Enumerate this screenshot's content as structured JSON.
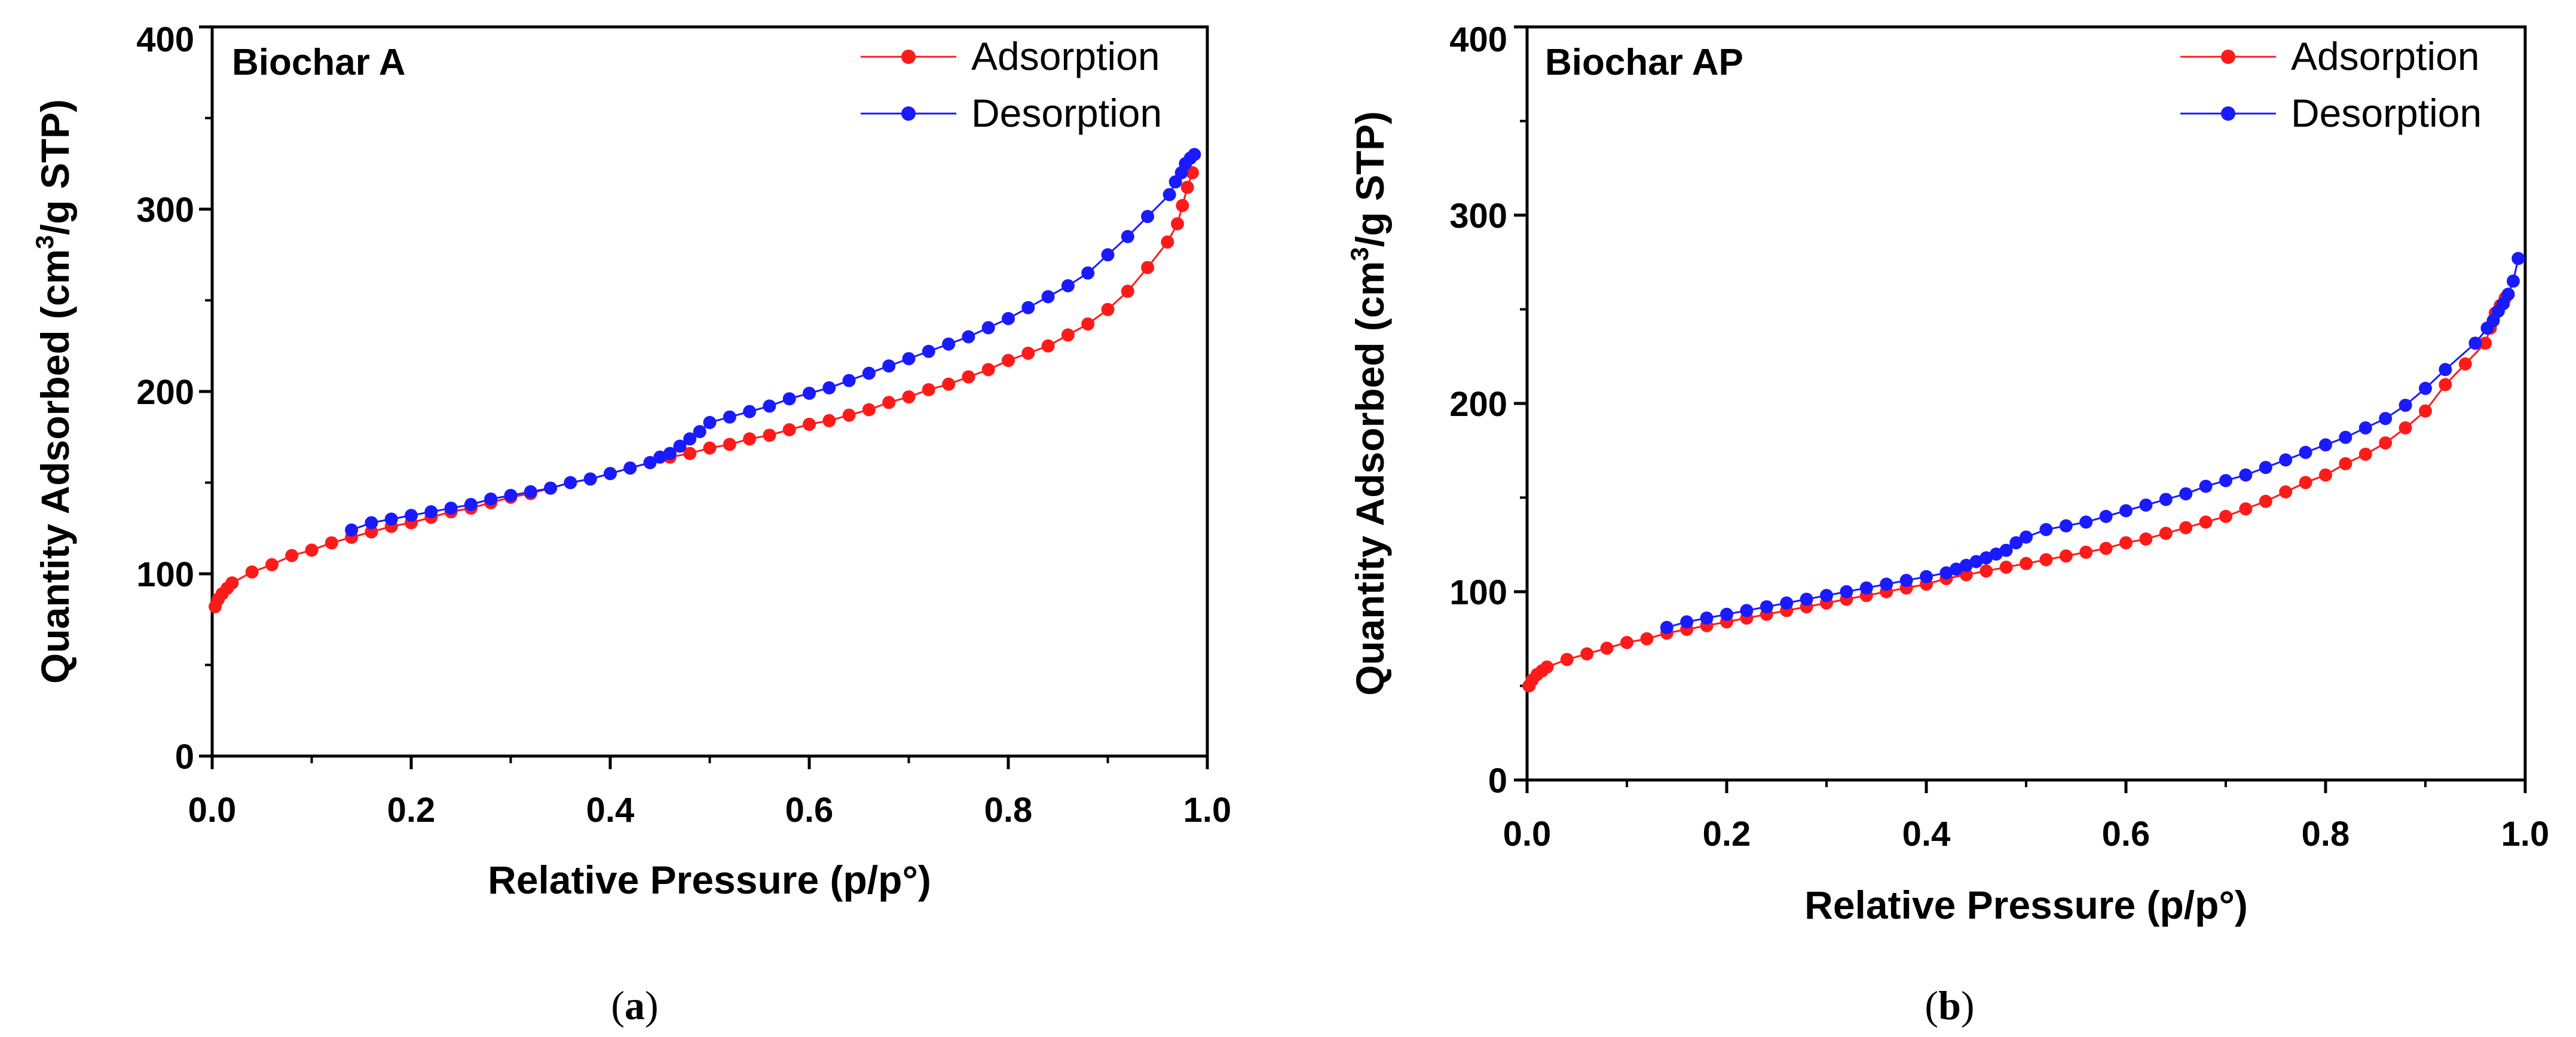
{
  "chart_data": [
    {
      "type": "line",
      "panel_title": "Biochar A",
      "caption": {
        "open": "(",
        "letter": "a",
        "close": ")"
      },
      "xlabel": "Relative Pressure (p/p°)",
      "ylabel": {
        "pre": "Quantity Adsorbed (cm",
        "sup": "3",
        "post": "/g STP)"
      },
      "xlim": [
        0,
        1.0
      ],
      "ylim": [
        0,
        400
      ],
      "xticks": [
        0.0,
        0.2,
        0.4,
        0.6,
        0.8,
        1.0
      ],
      "xtick_labels": [
        "0.0",
        "0.2",
        "0.4",
        "0.6",
        "0.8",
        "1.0"
      ],
      "yticks": [
        0,
        100,
        200,
        300,
        400
      ],
      "ytick_labels": [
        "0",
        "100",
        "200",
        "300",
        "400"
      ],
      "legend_position": "top-right",
      "series": [
        {
          "name": "Adsorption",
          "color": "#ff1a1a",
          "x": [
            0.003,
            0.006,
            0.01,
            0.015,
            0.02,
            0.04,
            0.06,
            0.08,
            0.1,
            0.12,
            0.14,
            0.16,
            0.18,
            0.2,
            0.22,
            0.24,
            0.26,
            0.28,
            0.3,
            0.32,
            0.34,
            0.36,
            0.38,
            0.4,
            0.42,
            0.44,
            0.46,
            0.48,
            0.5,
            0.52,
            0.54,
            0.56,
            0.58,
            0.6,
            0.62,
            0.64,
            0.66,
            0.68,
            0.7,
            0.72,
            0.74,
            0.76,
            0.78,
            0.8,
            0.82,
            0.84,
            0.86,
            0.88,
            0.9,
            0.92,
            0.94,
            0.96,
            0.97,
            0.975,
            0.98,
            0.985
          ],
          "values": [
            82,
            86,
            89,
            92,
            95,
            101,
            105,
            110,
            113,
            117,
            120,
            123,
            126,
            128,
            131,
            134,
            136,
            139,
            142,
            144,
            147,
            150,
            152,
            155,
            158,
            161,
            164,
            166,
            169,
            171,
            174,
            176,
            179,
            182,
            184,
            187,
            190,
            194,
            197,
            201,
            204,
            208,
            212,
            217,
            221,
            225,
            231,
            237,
            245,
            255,
            268,
            282,
            292,
            302,
            312,
            320
          ]
        },
        {
          "name": "Desorption",
          "color": "#1a1aff",
          "x": [
            0.987,
            0.983,
            0.978,
            0.974,
            0.968,
            0.962,
            0.94,
            0.92,
            0.9,
            0.88,
            0.86,
            0.84,
            0.82,
            0.8,
            0.78,
            0.76,
            0.74,
            0.72,
            0.7,
            0.68,
            0.66,
            0.64,
            0.62,
            0.6,
            0.58,
            0.56,
            0.54,
            0.52,
            0.5,
            0.49,
            0.48,
            0.47,
            0.46,
            0.45,
            0.44,
            0.42,
            0.4,
            0.38,
            0.36,
            0.34,
            0.32,
            0.3,
            0.28,
            0.26,
            0.24,
            0.22,
            0.2,
            0.18,
            0.16,
            0.14
          ],
          "values": [
            330,
            328,
            325,
            320,
            315,
            308,
            296,
            285,
            275,
            265,
            258,
            252,
            246,
            240,
            235,
            230,
            226,
            222,
            218,
            214,
            210,
            206,
            202,
            199,
            196,
            192,
            189,
            186,
            183,
            178,
            174,
            170,
            166,
            164,
            161,
            158,
            155,
            152,
            150,
            147,
            145,
            143,
            141,
            138,
            136,
            134,
            132,
            130,
            128,
            124
          ]
        }
      ]
    },
    {
      "type": "line",
      "panel_title": "Biochar AP",
      "caption": {
        "open": "(",
        "letter": "b",
        "close": ")"
      },
      "xlabel": "Relative Pressure (p/p°)",
      "ylabel": {
        "pre": "Quantity Adsorbed (cm",
        "sup": "3",
        "post": "/g STP)"
      },
      "xlim": [
        0,
        1.0
      ],
      "ylim": [
        0,
        400
      ],
      "xticks": [
        0.0,
        0.2,
        0.4,
        0.6,
        0.8,
        1.0
      ],
      "xtick_labels": [
        "0.0",
        "0.2",
        "0.4",
        "0.6",
        "0.8",
        "1.0"
      ],
      "yticks": [
        0,
        100,
        200,
        300,
        400
      ],
      "ytick_labels": [
        "0",
        "100",
        "200",
        "300",
        "400"
      ],
      "legend_position": "top-right",
      "series": [
        {
          "name": "Adsorption",
          "color": "#ff1a1a",
          "x": [
            0.002,
            0.005,
            0.01,
            0.015,
            0.02,
            0.04,
            0.06,
            0.08,
            0.1,
            0.12,
            0.14,
            0.16,
            0.18,
            0.2,
            0.22,
            0.24,
            0.26,
            0.28,
            0.3,
            0.32,
            0.34,
            0.36,
            0.38,
            0.4,
            0.42,
            0.44,
            0.46,
            0.48,
            0.5,
            0.52,
            0.54,
            0.56,
            0.58,
            0.6,
            0.62,
            0.64,
            0.66,
            0.68,
            0.7,
            0.72,
            0.74,
            0.76,
            0.78,
            0.8,
            0.82,
            0.84,
            0.86,
            0.88,
            0.9,
            0.92,
            0.94,
            0.96,
            0.965,
            0.97,
            0.975,
            0.98
          ],
          "values": [
            50,
            53,
            56,
            58,
            60,
            64,
            67,
            70,
            73,
            75,
            78,
            80,
            82,
            84,
            86,
            88,
            90,
            92,
            94,
            96,
            98,
            100,
            102,
            104,
            107,
            109,
            111,
            113,
            115,
            117,
            119,
            121,
            123,
            126,
            128,
            131,
            134,
            137,
            140,
            144,
            148,
            153,
            158,
            162,
            168,
            173,
            179,
            187,
            196,
            210,
            221,
            232,
            240,
            248,
            252,
            256
          ]
        },
        {
          "name": "Desorption",
          "color": "#1a1aff",
          "x": [
            0.993,
            0.988,
            0.983,
            0.978,
            0.973,
            0.968,
            0.962,
            0.95,
            0.92,
            0.9,
            0.88,
            0.86,
            0.84,
            0.82,
            0.8,
            0.78,
            0.76,
            0.74,
            0.72,
            0.7,
            0.68,
            0.66,
            0.64,
            0.62,
            0.6,
            0.58,
            0.56,
            0.54,
            0.52,
            0.5,
            0.49,
            0.48,
            0.47,
            0.46,
            0.45,
            0.44,
            0.43,
            0.42,
            0.4,
            0.38,
            0.36,
            0.34,
            0.32,
            0.3,
            0.28,
            0.26,
            0.24,
            0.22,
            0.2,
            0.18,
            0.16,
            0.14
          ],
          "values": [
            277,
            265,
            258,
            253,
            249,
            244,
            240,
            232,
            218,
            208,
            199,
            192,
            187,
            182,
            178,
            174,
            170,
            166,
            162,
            159,
            156,
            152,
            149,
            146,
            143,
            140,
            137,
            135,
            133,
            129,
            126,
            122,
            120,
            118,
            116,
            114,
            112,
            110,
            108,
            106,
            104,
            102,
            100,
            98,
            96,
            94,
            92,
            90,
            88,
            86,
            84,
            81
          ]
        }
      ]
    }
  ]
}
